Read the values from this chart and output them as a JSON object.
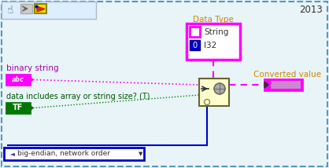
{
  "bg_color": "#e8f4f8",
  "outer_border_color": "#5599bb",
  "title_text": "2013",
  "title_color": "#333333",
  "data_type_label": "Data Type",
  "data_type_label_color": "#cc8800",
  "data_type_box_color": "#ff00ff",
  "string_label": "String",
  "i32_label": "I32",
  "i32_bg": "#0000cc",
  "string_sq_color": "#ff00ff",
  "binary_string_label": "binary string",
  "binary_string_color": "#aa00aa",
  "abc_box_color": "#ff00ff",
  "abc_text": "abc",
  "bool_label": "data includes array or string size? (T)",
  "bool_color": "#005500",
  "tf_box_color": "#007700",
  "tf_text": "TF",
  "enum_label": "big-endian, network order",
  "enum_box_color": "#0000cc",
  "converted_label": "Converted value",
  "converted_label_color": "#cc8800",
  "converted_box_color": "#ff00ff",
  "converted_inner_color": "#ddaadd",
  "node_bg": "#ffffcc",
  "node_border": "#888855",
  "wire_pink": "#ff00ff",
  "wire_pink_dashed": "#ff00ff",
  "wire_green_dot": "#008800",
  "wire_blue": "#0000cc",
  "toolbar_bg": "#ddeeff",
  "toolbar_border": "#aabbcc"
}
